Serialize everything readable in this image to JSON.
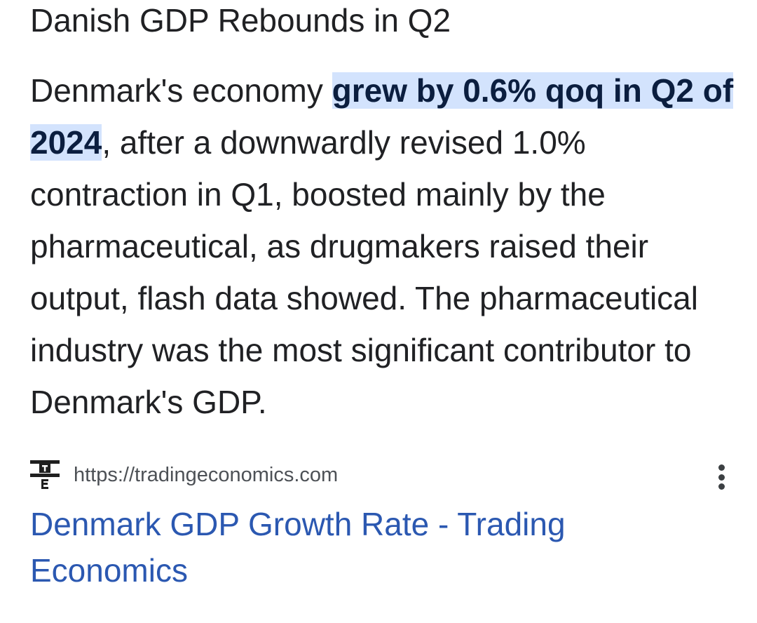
{
  "featured_snippet": {
    "heading": "Danish GDP Rebounds in Q2",
    "text_before": "Denmark's economy ",
    "highlight": "grew by 0.6% qoq in Q2 of 2024",
    "text_after": ", after a downwardly revised 1.0% contraction in Q1, boosted mainly by the pharmaceutical, as drugmakers raised their output, flash data showed. The pharmaceutical industry was the most significant contributor to Denmark's GDP."
  },
  "source": {
    "favicon_icon": "tradingeconomics-logo-icon",
    "favicon_letters": "TE",
    "url": "https://tradingeconomics.com",
    "more_icon": "more-vert-icon"
  },
  "result": {
    "title": "Denmark GDP Growth Rate - Trading Economics"
  },
  "colors": {
    "highlight_bg": "#d3e3fd",
    "link": "#2b58b1",
    "text": "#202124",
    "secondary_text": "#4d5156"
  }
}
